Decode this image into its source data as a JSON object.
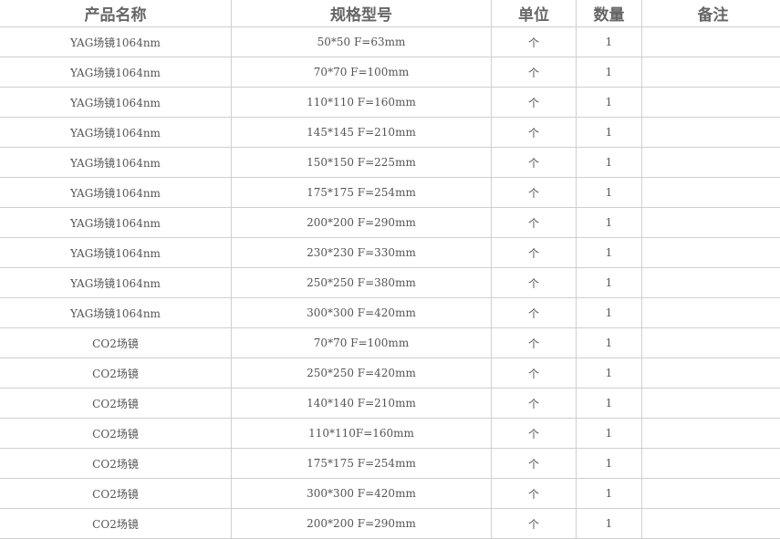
{
  "table": {
    "headers": [
      "产品名称",
      "规格型号",
      "单位",
      "数量",
      "备注"
    ],
    "rows": [
      [
        "YAG场镜1064nm",
        "50*50 F=63mm",
        "个",
        "1",
        ""
      ],
      [
        "YAG场镜1064nm",
        "70*70 F=100mm",
        "个",
        "1",
        ""
      ],
      [
        "YAG场镜1064nm",
        "110*110 F=160mm",
        "个",
        "1",
        ""
      ],
      [
        "YAG场镜1064nm",
        "145*145 F=210mm",
        "个",
        "1",
        ""
      ],
      [
        "YAG场镜1064nm",
        "150*150 F=225mm",
        "个",
        "1",
        ""
      ],
      [
        "YAG场镜1064nm",
        "175*175 F=254mm",
        "个",
        "1",
        ""
      ],
      [
        "YAG场镜1064nm",
        "200*200 F=290mm",
        "个",
        "1",
        ""
      ],
      [
        "YAG场镜1064nm",
        "230*230 F=330mm",
        "个",
        "1",
        ""
      ],
      [
        "YAG场镜1064nm",
        "250*250 F=380mm",
        "个",
        "1",
        ""
      ],
      [
        "YAG场镜1064nm",
        "300*300 F=420mm",
        "个",
        "1",
        ""
      ],
      [
        "CO2场镜",
        "70*70 F=100mm",
        "个",
        "1",
        ""
      ],
      [
        "CO2场镜",
        "250*250 F=420mm",
        "个",
        "1",
        ""
      ],
      [
        "CO2场镜",
        "140*140 F=210mm",
        "个",
        "1",
        ""
      ],
      [
        "CO2场镜",
        "110*110F=160mm",
        "个",
        "1",
        ""
      ],
      [
        "CO2场镜",
        "175*175 F=254mm",
        "个",
        "1",
        ""
      ],
      [
        "CO2场镜",
        "300*300 F=420mm",
        "个",
        "1",
        ""
      ],
      [
        "CO2场镜",
        "200*200 F=290mm",
        "个",
        "1",
        ""
      ]
    ]
  }
}
